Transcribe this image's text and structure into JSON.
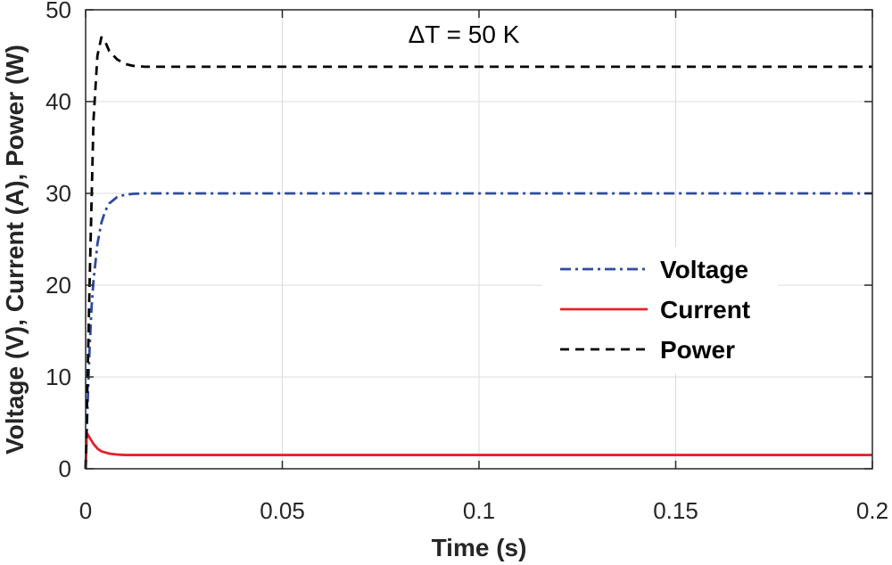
{
  "chart_data": {
    "type": "line",
    "title": "",
    "annotation": "ΔT = 50 K",
    "xlabel": "Time (s)",
    "ylabel": "Voltage (V), Current (A), Power (W)",
    "xlim": [
      0,
      0.2
    ],
    "ylim": [
      0,
      50
    ],
    "xticks": [
      0,
      0.05,
      0.1,
      0.15,
      0.2
    ],
    "xtick_labels": [
      "0",
      "0.05",
      "0.1",
      "0.15",
      "0.2"
    ],
    "yticks": [
      0,
      10,
      20,
      30,
      40,
      50
    ],
    "ytick_labels": [
      "0",
      "10",
      "20",
      "30",
      "40",
      "50"
    ],
    "grid": true,
    "legend_position": "right",
    "series": [
      {
        "name": "Voltage",
        "color": "#2e4aa0",
        "style": "dash-dot",
        "x": [
          0,
          0.0005,
          0.001,
          0.0015,
          0.002,
          0.003,
          0.004,
          0.005,
          0.006,
          0.008,
          0.01,
          0.012,
          0.015,
          0.02,
          0.05,
          0.1,
          0.15,
          0.2
        ],
        "y": [
          0,
          7,
          13,
          17.5,
          20.5,
          24.5,
          26.8,
          28.1,
          28.9,
          29.6,
          29.85,
          29.95,
          30,
          30,
          30,
          30,
          30,
          30
        ]
      },
      {
        "name": "Current",
        "color": "#e8202a",
        "style": "solid",
        "x": [
          0,
          0.0003,
          0.001,
          0.002,
          0.003,
          0.004,
          0.006,
          0.008,
          0.01,
          0.015,
          0.02,
          0.05,
          0.1,
          0.15,
          0.2
        ],
        "y": [
          0,
          3.9,
          3.4,
          2.7,
          2.2,
          1.9,
          1.65,
          1.55,
          1.5,
          1.5,
          1.5,
          1.5,
          1.5,
          1.5,
          1.5
        ]
      },
      {
        "name": "Power",
        "color": "#000000",
        "style": "dashed",
        "x": [
          0,
          0.001,
          0.002,
          0.003,
          0.004,
          0.005,
          0.006,
          0.008,
          0.01,
          0.012,
          0.015,
          0.02,
          0.05,
          0.1,
          0.15,
          0.2
        ],
        "y": [
          0,
          20,
          38,
          45,
          47,
          46.5,
          45.5,
          44.6,
          44.1,
          43.9,
          43.8,
          43.8,
          43.8,
          43.8,
          43.8,
          43.8
        ]
      }
    ]
  }
}
